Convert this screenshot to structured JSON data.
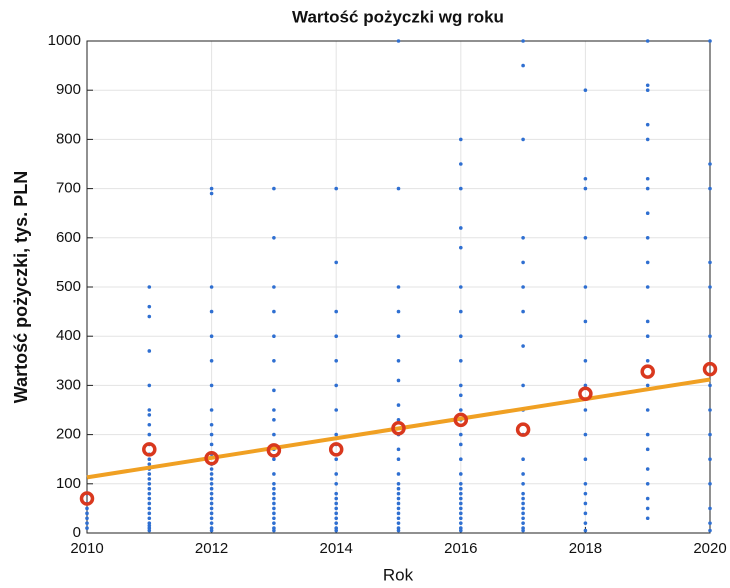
{
  "chart_data": {
    "type": "scatter",
    "title": "Wartość pożyczki wg roku",
    "xlabel": "Rok",
    "ylabel": "Wartość pożyczki, tys. PLN",
    "xlim": [
      2010,
      2020
    ],
    "xticks": [
      2010,
      2012,
      2014,
      2016,
      2018,
      2020
    ],
    "ylim": [
      0,
      1000
    ],
    "yticks": [
      0,
      100,
      200,
      300,
      400,
      500,
      600,
      700,
      800,
      900,
      1000
    ],
    "grid": true,
    "series": [
      {
        "color": "#2f6fd1",
        "x": 2010,
        "values": [
          10,
          20,
          30,
          40,
          50,
          60,
          80
        ]
      },
      {
        "color": "#2f6fd1",
        "x": 2011,
        "values": [
          5,
          10,
          15,
          20,
          30,
          40,
          50,
          60,
          70,
          80,
          90,
          100,
          110,
          120,
          130,
          140,
          150,
          160,
          180,
          200,
          220,
          240,
          250,
          300,
          370,
          440,
          460,
          500
        ]
      },
      {
        "color": "#2f6fd1",
        "x": 2012,
        "values": [
          5,
          10,
          20,
          30,
          40,
          50,
          60,
          70,
          80,
          90,
          100,
          110,
          120,
          130,
          140,
          160,
          180,
          200,
          220,
          250,
          300,
          350,
          400,
          450,
          500,
          690,
          700
        ]
      },
      {
        "color": "#2f6fd1",
        "x": 2013,
        "values": [
          5,
          10,
          20,
          30,
          40,
          50,
          60,
          70,
          80,
          90,
          100,
          120,
          150,
          170,
          200,
          230,
          250,
          290,
          350,
          400,
          450,
          500,
          600,
          700
        ]
      },
      {
        "color": "#2f6fd1",
        "x": 2014,
        "values": [
          5,
          10,
          20,
          30,
          40,
          50,
          60,
          70,
          80,
          100,
          120,
          150,
          180,
          200,
          250,
          300,
          350,
          400,
          450,
          550,
          700
        ]
      },
      {
        "color": "#2f6fd1",
        "x": 2015,
        "values": [
          5,
          10,
          20,
          30,
          40,
          50,
          60,
          70,
          80,
          90,
          100,
          120,
          150,
          170,
          200,
          230,
          260,
          310,
          350,
          400,
          450,
          500,
          700,
          1000
        ]
      },
      {
        "color": "#2f6fd1",
        "x": 2016,
        "values": [
          5,
          10,
          20,
          30,
          40,
          50,
          60,
          70,
          80,
          90,
          100,
          120,
          150,
          180,
          200,
          230,
          250,
          280,
          300,
          350,
          400,
          450,
          500,
          580,
          620,
          700,
          750,
          800
        ]
      },
      {
        "color": "#2f6fd1",
        "x": 2017,
        "values": [
          5,
          10,
          20,
          30,
          40,
          50,
          60,
          70,
          80,
          100,
          120,
          150,
          200,
          250,
          300,
          380,
          450,
          500,
          550,
          600,
          800,
          950,
          1000
        ]
      },
      {
        "color": "#2f6fd1",
        "x": 2018,
        "values": [
          5,
          20,
          40,
          60,
          80,
          100,
          150,
          200,
          250,
          300,
          350,
          430,
          500,
          600,
          700,
          720,
          900
        ]
      },
      {
        "color": "#2f6fd1",
        "x": 2019,
        "values": [
          30,
          50,
          70,
          100,
          130,
          170,
          200,
          250,
          300,
          350,
          400,
          430,
          500,
          550,
          600,
          650,
          700,
          720,
          800,
          830,
          900,
          910,
          1000
        ]
      },
      {
        "color": "#2f6fd1",
        "x": 2020,
        "values": [
          5,
          20,
          50,
          100,
          150,
          200,
          250,
          300,
          400,
          500,
          550,
          700,
          750,
          1000
        ]
      },
      {
        "color": "#f0a023",
        "type": "line",
        "x": [
          2010,
          2020
        ],
        "values": [
          113,
          312
        ]
      },
      {
        "color": "#d9381e",
        "type": "ring",
        "x": [
          2010,
          2011,
          2012,
          2013,
          2014,
          2015,
          2016,
          2017,
          2018,
          2019,
          2020
        ],
        "values": [
          70,
          170,
          152,
          168,
          170,
          213,
          230,
          210,
          283,
          328,
          333
        ]
      }
    ]
  }
}
